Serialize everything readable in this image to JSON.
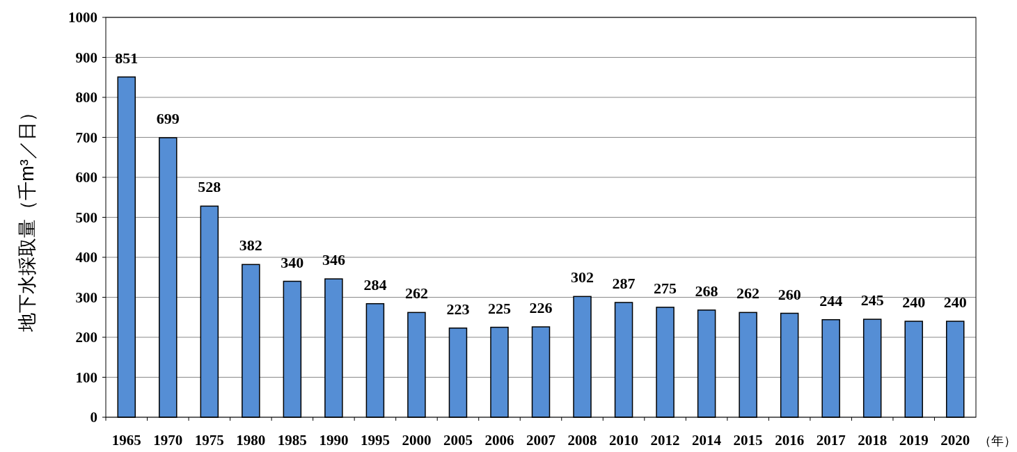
{
  "chart_data": {
    "type": "bar",
    "ylabel": "地下水採取量（千m³／日）",
    "xlabel": "（年）",
    "categories": [
      "1965",
      "1970",
      "1975",
      "1980",
      "1985",
      "1990",
      "1995",
      "2000",
      "2005",
      "2006",
      "2007",
      "2008",
      "2010",
      "2012",
      "2014",
      "2015",
      "2016",
      "2017",
      "2018",
      "2019",
      "2020"
    ],
    "values": [
      851,
      699,
      528,
      382,
      340,
      346,
      284,
      262,
      223,
      225,
      226,
      302,
      287,
      275,
      268,
      262,
      260,
      244,
      245,
      240,
      240
    ],
    "color": "#558ed5",
    "ylim": [
      0,
      1000
    ],
    "yticks": [
      0,
      100,
      200,
      300,
      400,
      500,
      600,
      700,
      800,
      900,
      1000
    ],
    "grid": "y",
    "data_labels": true
  }
}
